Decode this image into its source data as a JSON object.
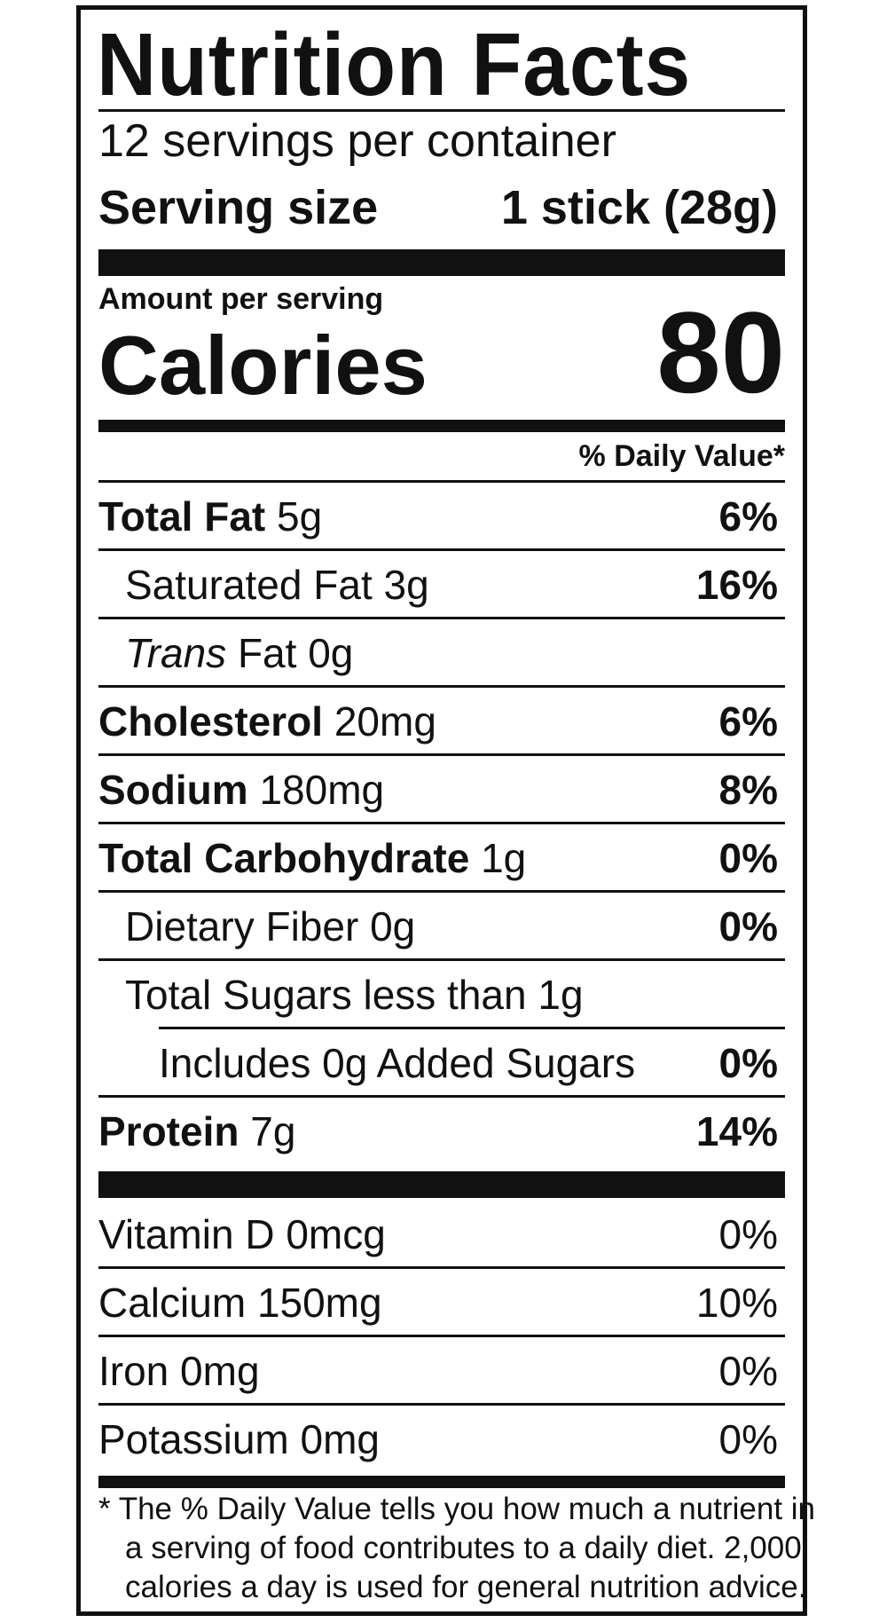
{
  "title": "Nutrition Facts",
  "servings_per_container": "12 servings per container",
  "serving_size": {
    "label": "Serving size",
    "value": "1 stick (28g)"
  },
  "amount_per_serving": "Amount per serving",
  "calories": {
    "label": "Calories",
    "value": "80"
  },
  "dv_header": "% Daily Value*",
  "nutrients": [
    {
      "name": "Total Fat",
      "amount": "5g",
      "dv": "6%"
    },
    {
      "name": "Saturated Fat",
      "amount": "3g",
      "dv": "16%"
    },
    {
      "name_italic": "Trans",
      "name": "Fat",
      "amount": "0g",
      "dv": ""
    },
    {
      "name": "Cholesterol",
      "amount": "20mg",
      "dv": "6%"
    },
    {
      "name": "Sodium",
      "amount": "180mg",
      "dv": "8%"
    },
    {
      "name": "Total Carbohydrate",
      "amount": "1g",
      "dv": "0%"
    },
    {
      "name": "Dietary Fiber",
      "amount": "0g",
      "dv": "0%"
    },
    {
      "name": "Total Sugars less than",
      "amount": "1g",
      "dv": ""
    },
    {
      "name": "Includes 0g Added Sugars",
      "amount": "",
      "dv": "0%"
    },
    {
      "name": "Protein",
      "amount": "7g",
      "dv": "14%"
    }
  ],
  "vitamins": [
    {
      "name": "Vitamin D",
      "amount": "0mcg",
      "dv": "0%"
    },
    {
      "name": "Calcium",
      "amount": "150mg",
      "dv": "10%"
    },
    {
      "name": "Iron",
      "amount": "0mg",
      "dv": "0%"
    },
    {
      "name": "Potassium",
      "amount": "0mg",
      "dv": "0%"
    }
  ],
  "footnote": [
    "* The % Daily Value tells you how much a nutrient in",
    "a serving of food contributes to a daily diet. 2,000",
    "calories a day is used for general nutrition advice."
  ]
}
